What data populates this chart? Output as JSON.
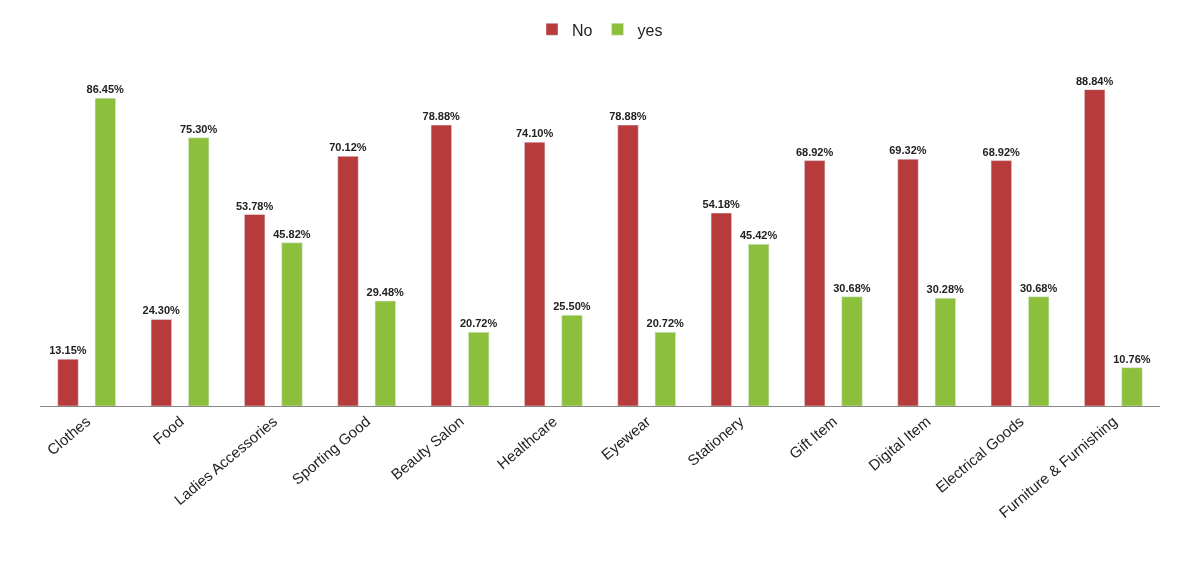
{
  "chart_data": {
    "type": "bar",
    "categories": [
      "Clothes",
      "Food",
      "Ladies Accessories",
      "Sporting Good",
      "Beauty Salon",
      "Healthcare",
      "Eyewear",
      "Stationery",
      "Gift Item",
      "Digital Item",
      "Electrical Goods",
      "Furniture & Furnishing"
    ],
    "series": [
      {
        "name": "No",
        "color": "#b83b3b",
        "values": [
          13.15,
          24.3,
          53.78,
          70.12,
          78.88,
          74.1,
          78.88,
          54.18,
          68.92,
          69.32,
          68.92,
          88.84
        ],
        "value_labels": [
          "13.15%",
          "24.30%",
          "53.78%",
          "70.12%",
          "78.88%",
          "74.10%",
          "78.88%",
          "54.18%",
          "68.92%",
          "69.32%",
          "68.92%",
          "88.84%"
        ]
      },
      {
        "name": "yes",
        "color": "#8cc03c",
        "values": [
          86.45,
          75.3,
          45.82,
          29.48,
          20.72,
          25.5,
          20.72,
          45.42,
          30.68,
          30.28,
          30.68,
          10.76
        ],
        "value_labels": [
          "86.45%",
          "75.30%",
          "45.82%",
          "29.48%",
          "20.72%",
          "25.50%",
          "20.72%",
          "45.42%",
          "30.68%",
          "30.28%",
          "30.68%",
          "10.76%"
        ]
      }
    ],
    "legend": "top"
  }
}
